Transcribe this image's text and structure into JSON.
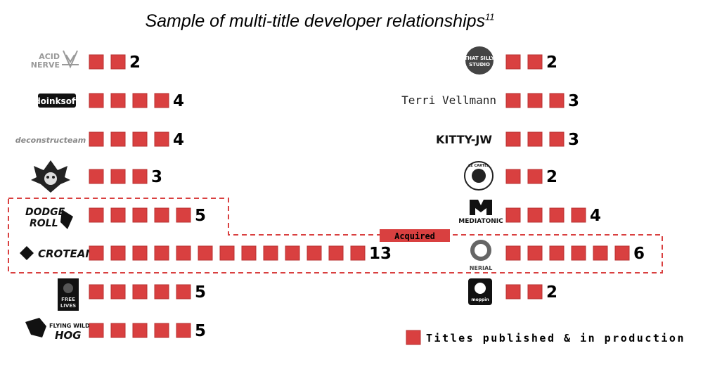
{
  "title": "Sample of multi-title developer relationships",
  "title_footnote": "11",
  "acquired_label": "Acquired",
  "legend_label": "Titles published & in production",
  "colors": {
    "square": "#d94040",
    "square_border": "#b83030",
    "highlight": "#d94040",
    "text": "#000000"
  },
  "chart_data": {
    "type": "bar",
    "title": "Sample of multi-title developer relationships",
    "ylabel": "",
    "xlabel": "",
    "unit": "Titles published & in production",
    "left_column": [
      {
        "developer": "ACID NERVE",
        "label": "ACID NERVE",
        "value": 2
      },
      {
        "developer": "doinksoft",
        "label": "doinksoft",
        "value": 4
      },
      {
        "developer": "Deconstructeam",
        "label": "deconstructeam",
        "value": 4
      },
      {
        "developer": "Unnamed studio (skull logo)",
        "label": "",
        "value": 3
      },
      {
        "developer": "Dodge Roll",
        "label": "DODGE ROLL",
        "value": 5,
        "acquired": true
      },
      {
        "developer": "Croteam",
        "label": "CROTEAM",
        "value": 13,
        "acquired": true
      },
      {
        "developer": "Free Lives",
        "label": "FREE LIVES",
        "value": 5
      },
      {
        "developer": "Flying Wild Hog",
        "label": "FLYING WILD HOG",
        "value": 5
      }
    ],
    "right_column": [
      {
        "developer": "That Silly Studio",
        "label": "THAT SILLY STUDIO",
        "value": 2
      },
      {
        "developer": "Terri Vellmann",
        "label": "Terri Vellmann",
        "value": 3
      },
      {
        "developer": "KITTY-JW",
        "label": "KITTY-JW",
        "value": 3
      },
      {
        "developer": "Le Cartel",
        "label": "LE CARTEL",
        "value": 2
      },
      {
        "developer": "Mediatonic",
        "label": "MEDIATONIC",
        "value": 4
      },
      {
        "developer": "Nerial",
        "label": "NERIAL",
        "value": 6,
        "acquired": true
      },
      {
        "developer": "moppin",
        "label": "moppin",
        "value": 2
      }
    ]
  }
}
